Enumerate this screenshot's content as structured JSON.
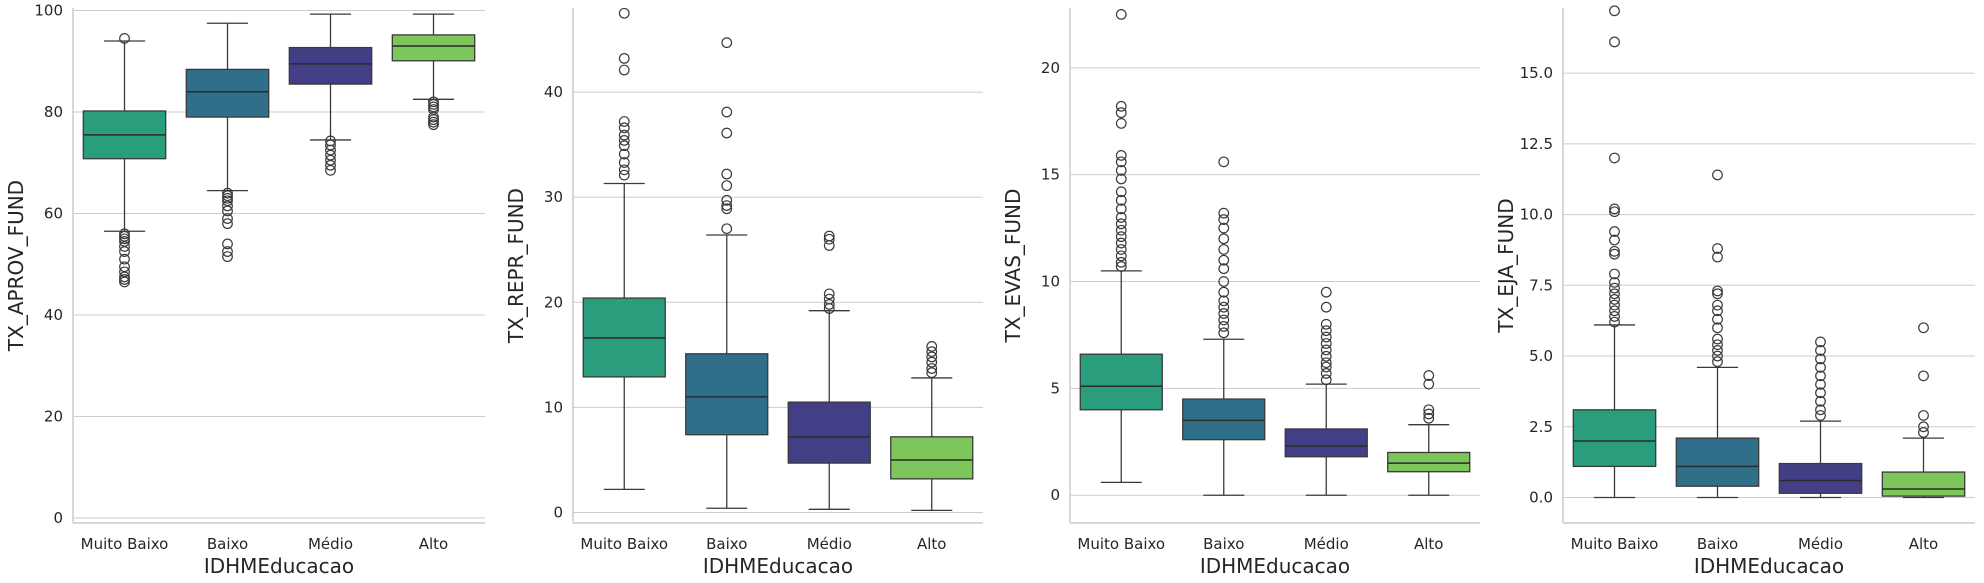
{
  "chart_data": [
    {
      "type": "box",
      "xlabel": "IDHMEducacao",
      "ylabel": "TX_APROV_FUND",
      "ylim": [
        -1,
        100.5
      ],
      "yticks": [
        "0",
        "20",
        "40",
        "60",
        "80",
        "100"
      ],
      "ytick_values": [
        0,
        20,
        40,
        60,
        80,
        100
      ],
      "grid": "horizontal",
      "categories": [
        "Muito Baixo",
        "Baixo",
        "Médio",
        "Alto"
      ],
      "colors": [
        "#2a9d7c",
        "#2f6f8a",
        "#433f86",
        "#7dc65b"
      ],
      "boxes": [
        {
          "min": 56.5,
          "q1": 70.8,
          "median": 75.5,
          "q3": 80.2,
          "max": 94,
          "outliers": [
            94.5,
            56,
            55.5,
            55,
            54.5,
            53.5,
            52.5,
            51,
            49.5,
            48.5,
            47.5,
            47,
            46.5
          ]
        },
        {
          "min": 64.5,
          "q1": 79,
          "median": 84,
          "q3": 88.4,
          "max": 97.5,
          "outliers": [
            64,
            63.5,
            63,
            62.5,
            61.5,
            60.5,
            59,
            58,
            54,
            52.5,
            51.5
          ]
        },
        {
          "min": 74.5,
          "q1": 85.5,
          "median": 89.5,
          "q3": 92.7,
          "max": 99.3,
          "outliers": [
            74.3,
            73.5,
            72.5,
            71.5,
            70.5,
            69.5,
            68.5
          ]
        },
        {
          "min": 82.5,
          "q1": 90.1,
          "median": 93,
          "q3": 95.2,
          "max": 99.3,
          "outliers": [
            82,
            81.5,
            81,
            80.5,
            79,
            78.5,
            78,
            77.5
          ]
        }
      ]
    },
    {
      "type": "box",
      "xlabel": "IDHMEducacao",
      "ylabel": "TX_REPR_FUND",
      "ylim": [
        -1,
        48
      ],
      "yticks": [
        "0",
        "10",
        "20",
        "30",
        "40"
      ],
      "ytick_values": [
        0,
        10,
        20,
        30,
        40
      ],
      "grid": "horizontal",
      "categories": [
        "Muito Baixo",
        "Baixo",
        "Médio",
        "Alto"
      ],
      "colors": [
        "#2a9d7c",
        "#2f6f8a",
        "#433f86",
        "#7dc65b"
      ],
      "boxes": [
        {
          "min": 2.2,
          "q1": 12.9,
          "median": 16.6,
          "q3": 20.4,
          "max": 31.3,
          "outliers": [
            47.5,
            43.2,
            42.1,
            37.2,
            36.6,
            35.9,
            35.4,
            34.9,
            34.1,
            33.3,
            32.6,
            32.1
          ]
        },
        {
          "min": 0.4,
          "q1": 7.4,
          "median": 11,
          "q3": 15.1,
          "max": 26.4,
          "outliers": [
            44.7,
            38.1,
            36.1,
            32.2,
            31.1,
            29.7,
            29.2,
            28.9,
            27
          ]
        },
        {
          "min": 0.3,
          "q1": 4.7,
          "median": 7.2,
          "q3": 10.5,
          "max": 19.2,
          "outliers": [
            26.3,
            26,
            25.4,
            20.8,
            20.3,
            19.8,
            19.4
          ]
        },
        {
          "min": 0.2,
          "q1": 3.2,
          "median": 5,
          "q3": 7.2,
          "max": 12.8,
          "outliers": [
            15.8,
            15.3,
            14.8,
            14.3,
            13.7,
            13.3
          ]
        }
      ]
    },
    {
      "type": "box",
      "xlabel": "IDHMEducacao",
      "ylabel": "TX_EVAS_FUND",
      "ylim": [
        -1.3,
        22.8
      ],
      "yticks": [
        "0",
        "5",
        "10",
        "15",
        "20"
      ],
      "ytick_values": [
        0,
        5,
        10,
        15,
        20
      ],
      "grid": "horizontal",
      "categories": [
        "Muito Baixo",
        "Baixo",
        "Médio",
        "Alto"
      ],
      "colors": [
        "#2a9d7c",
        "#2f6f8a",
        "#433f86",
        "#7dc65b"
      ],
      "boxes": [
        {
          "min": 0.6,
          "q1": 4,
          "median": 5.1,
          "q3": 6.6,
          "max": 10.5,
          "outliers": [
            22.5,
            18.2,
            17.9,
            17.4,
            15.9,
            15.6,
            15.2,
            14.8,
            14.2,
            13.8,
            13.4,
            13,
            12.7,
            12.4,
            12.1,
            11.8,
            11.5,
            11.2,
            10.9,
            10.7
          ]
        },
        {
          "min": 0,
          "q1": 2.6,
          "median": 3.5,
          "q3": 4.5,
          "max": 7.3,
          "outliers": [
            15.6,
            13.2,
            12.9,
            12.5,
            12,
            11.5,
            11,
            10.6,
            10,
            9.5,
            9.1,
            8.8,
            8.5,
            8.2,
            7.9,
            7.6
          ]
        },
        {
          "min": 0,
          "q1": 1.8,
          "median": 2.3,
          "q3": 3.1,
          "max": 5.2,
          "outliers": [
            9.5,
            8.8,
            8,
            7.7,
            7.4,
            7.1,
            6.8,
            6.5,
            6.2,
            6,
            5.7,
            5.4
          ]
        },
        {
          "min": 0,
          "q1": 1.1,
          "median": 1.5,
          "q3": 2,
          "max": 3.3,
          "outliers": [
            5.6,
            5.2,
            4,
            3.8,
            3.6
          ]
        }
      ]
    },
    {
      "type": "box",
      "xlabel": "IDHMEducacao",
      "ylabel": "TX_EJA_FUND",
      "ylim": [
        -0.9,
        17.3
      ],
      "yticks": [
        "0.0",
        "2.5",
        "5.0",
        "7.5",
        "10.0",
        "12.5",
        "15.0"
      ],
      "ytick_values": [
        0,
        2.5,
        5,
        7.5,
        10,
        12.5,
        15
      ],
      "grid": "horizontal",
      "categories": [
        "Muito Baixo",
        "Baixo",
        "Médio",
        "Alto"
      ],
      "colors": [
        "#2a9d7c",
        "#2f6f8a",
        "#433f86",
        "#7dc65b"
      ],
      "boxes": [
        {
          "min": 0,
          "q1": 1.1,
          "median": 2,
          "q3": 3.1,
          "max": 6.1,
          "outliers": [
            17.2,
            16.1,
            12,
            10.2,
            10.1,
            9.4,
            9.1,
            8.7,
            8.6,
            7.9,
            7.6,
            7.4,
            7.2,
            7,
            6.8,
            6.6,
            6.4,
            6.2
          ]
        },
        {
          "min": 0,
          "q1": 0.4,
          "median": 1.1,
          "q3": 2.1,
          "max": 4.6,
          "outliers": [
            11.4,
            8.8,
            8.5,
            7.3,
            7.2,
            6.8,
            6.6,
            6.3,
            6,
            5.6,
            5.4,
            5.2,
            5,
            4.8
          ]
        },
        {
          "min": 0,
          "q1": 0.15,
          "median": 0.6,
          "q3": 1.2,
          "max": 2.7,
          "outliers": [
            5.5,
            5.2,
            4.9,
            4.6,
            4.3,
            4,
            3.7,
            3.4,
            3.1,
            2.9
          ]
        },
        {
          "min": 0,
          "q1": 0.05,
          "median": 0.3,
          "q3": 0.9,
          "max": 2.1,
          "outliers": [
            6,
            4.3,
            2.9,
            2.5,
            2.3
          ]
        }
      ]
    }
  ]
}
